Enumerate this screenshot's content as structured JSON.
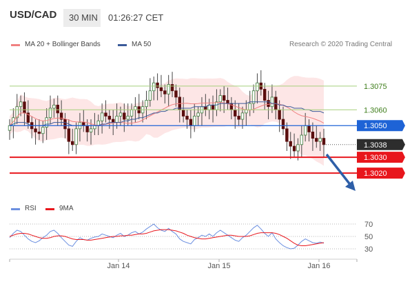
{
  "header": {
    "symbol": "USD/CAD",
    "timeframe": "30 MIN",
    "time": "01:26:27 CET"
  },
  "legend": {
    "bollinger_label": "MA 20 + Bollinger Bands",
    "ma50_label": "MA 50",
    "credit": "Research © 2020 Trading Central"
  },
  "rsi_legend": {
    "rsi_label": "RSI",
    "ma_label": "9MA"
  },
  "colors": {
    "bollinger": "#f08080",
    "band_fill": "#fde3e3",
    "ma50": "#3a5a99",
    "resistance_green": "#a5cf7a",
    "pivot_blue": "#1e63d6",
    "support_red": "#e8161c",
    "last_price_tag": "#2d2d2d",
    "arrow": "#2e5fa8",
    "rsi_line": "#6b8fe0",
    "rsi_ma": "#e8161c"
  },
  "chart_data": [
    {
      "type": "candlestick",
      "title": "USD/CAD 30 MIN",
      "x_tick_labels": [
        "Jan 14",
        "Jan 15",
        "Jan 16"
      ],
      "ylim": [
        1.3017,
        1.3088
      ],
      "last_price": 1.3038,
      "levels": [
        {
          "value": 1.3075,
          "label": "1.3075",
          "kind": "resistance"
        },
        {
          "value": 1.306,
          "label": "1.3060",
          "kind": "resistance"
        },
        {
          "value": 1.305,
          "label": "1.3050",
          "kind": "pivot"
        },
        {
          "value": 1.3038,
          "label": "1.3038",
          "kind": "last"
        },
        {
          "value": 1.303,
          "label": "1.3030",
          "kind": "support"
        },
        {
          "value": 1.302,
          "label": "1.3020",
          "kind": "support"
        }
      ],
      "closes": [
        1.305,
        1.3055,
        1.3062,
        1.3065,
        1.3058,
        1.3052,
        1.3048,
        1.3046,
        1.3045,
        1.3049,
        1.3055,
        1.3061,
        1.3063,
        1.3058,
        1.3054,
        1.3048,
        1.304,
        1.3038,
        1.3048,
        1.3052,
        1.305,
        1.3046,
        1.3048,
        1.305,
        1.3053,
        1.3058,
        1.3056,
        1.3054,
        1.3052,
        1.3056,
        1.3058,
        1.3054,
        1.3056,
        1.306,
        1.3062,
        1.3058,
        1.3062,
        1.3066,
        1.3072,
        1.3077,
        1.3074,
        1.3072,
        1.307,
        1.3076,
        1.3072,
        1.3068,
        1.306,
        1.3056,
        1.3054,
        1.305,
        1.3056,
        1.3058,
        1.3062,
        1.306,
        1.3063,
        1.306,
        1.3065,
        1.3069,
        1.3066,
        1.3064,
        1.306,
        1.3056,
        1.3054,
        1.3058,
        1.306,
        1.3064,
        1.3072,
        1.3077,
        1.3073,
        1.3066,
        1.3062,
        1.3068,
        1.306,
        1.3054,
        1.3048,
        1.304,
        1.3037,
        1.3034,
        1.3038,
        1.3044,
        1.305,
        1.3046,
        1.3042,
        1.304,
        1.3042,
        1.3038
      ],
      "ma50": [
        1.305,
        1.3051,
        1.3052,
        1.3052,
        1.3052,
        1.3051,
        1.305,
        1.305,
        1.305,
        1.305,
        1.3051,
        1.3051,
        1.3052,
        1.3052,
        1.3052,
        1.3052,
        1.3051,
        1.305,
        1.305,
        1.305,
        1.305,
        1.305,
        1.305,
        1.305,
        1.305,
        1.3051,
        1.3051,
        1.3052,
        1.3052,
        1.3052,
        1.3052,
        1.3053,
        1.3053,
        1.3054,
        1.3054,
        1.3055,
        1.3055,
        1.3056,
        1.3057,
        1.3058,
        1.3058,
        1.3059,
        1.3059,
        1.306,
        1.306,
        1.3061,
        1.3061,
        1.3061,
        1.3061,
        1.3061,
        1.3062,
        1.3062,
        1.3062,
        1.3062,
        1.3063,
        1.3063,
        1.3063,
        1.3064,
        1.3064,
        1.3064,
        1.3064,
        1.3064,
        1.3064,
        1.3064,
        1.3064,
        1.3065,
        1.3065,
        1.3065,
        1.3065,
        1.3065,
        1.3065,
        1.3064,
        1.3064,
        1.3063,
        1.3063,
        1.3062,
        1.3062,
        1.3061,
        1.3061,
        1.3061,
        1.306,
        1.306,
        1.3059,
        1.3059,
        1.3059,
        1.3058
      ],
      "rsi_ylim": [
        20,
        80
      ],
      "rsi_levels": [
        {
          "value": 70,
          "label": "70"
        },
        {
          "value": 50,
          "label": "50"
        },
        {
          "value": 30,
          "label": "30"
        }
      ],
      "rsi": [
        48,
        55,
        60,
        58,
        52,
        46,
        42,
        40,
        43,
        48,
        52,
        58,
        60,
        55,
        48,
        42,
        36,
        34,
        42,
        48,
        45,
        44,
        47,
        49,
        50,
        54,
        52,
        50,
        48,
        52,
        55,
        50,
        52,
        56,
        58,
        54,
        57,
        62,
        66,
        70,
        64,
        60,
        58,
        63,
        58,
        54,
        46,
        42,
        40,
        38,
        45,
        48,
        52,
        50,
        54,
        50,
        56,
        60,
        56,
        52,
        48,
        44,
        42,
        48,
        52,
        58,
        64,
        68,
        62,
        55,
        50,
        56,
        46,
        40,
        35,
        32,
        30,
        31,
        36,
        42,
        46,
        43,
        40,
        39,
        41,
        39
      ],
      "rsi_ma": [
        50,
        52,
        54,
        55,
        55,
        54,
        52,
        50,
        48,
        47,
        47,
        48,
        50,
        51,
        51,
        50,
        48,
        46,
        45,
        45,
        45,
        44,
        44,
        45,
        46,
        47,
        48,
        49,
        50,
        50,
        51,
        51,
        52,
        52,
        53,
        54,
        54,
        55,
        57,
        59,
        60,
        61,
        61,
        61,
        60,
        59,
        57,
        55,
        52,
        50,
        48,
        47,
        46,
        46,
        47,
        48,
        49,
        50,
        51,
        52,
        52,
        51,
        50,
        50,
        50,
        51,
        53,
        55,
        56,
        56,
        56,
        56,
        55,
        53,
        50,
        47,
        43,
        39,
        36,
        35,
        35,
        36,
        37,
        38,
        39,
        40
      ]
    }
  ]
}
